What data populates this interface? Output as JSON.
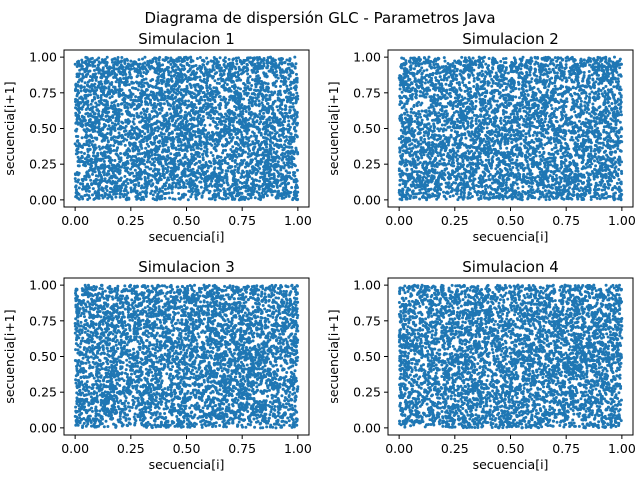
{
  "figure": {
    "suptitle": "Diagrama de dispersión GLC - Parametros Java",
    "background": "#ffffff"
  },
  "chart_data": [
    {
      "type": "scatter",
      "title": "Simulacion 1",
      "xlabel": "secuencia[i]",
      "ylabel": "secuencia[i+1]",
      "xlim": [
        -0.05,
        1.05
      ],
      "ylim": [
        -0.05,
        1.05
      ],
      "xticks": [
        "0.00",
        "0.25",
        "0.50",
        "0.75",
        "1.00"
      ],
      "yticks": [
        "0.00",
        "0.25",
        "0.50",
        "0.75",
        "1.00"
      ],
      "grid": false,
      "color": "#1f77b4",
      "points": {
        "distribution": "uniform",
        "x_range": [
          0,
          1
        ],
        "y_range": [
          0,
          1
        ],
        "approx_count": 5000,
        "seed": 11
      }
    },
    {
      "type": "scatter",
      "title": "Simulacion 2",
      "xlabel": "secuencia[i]",
      "ylabel": "secuencia[i+1]",
      "xlim": [
        -0.05,
        1.05
      ],
      "ylim": [
        -0.05,
        1.05
      ],
      "xticks": [
        "0.00",
        "0.25",
        "0.50",
        "0.75",
        "1.00"
      ],
      "yticks": [
        "0.00",
        "0.25",
        "0.50",
        "0.75",
        "1.00"
      ],
      "grid": false,
      "color": "#1f77b4",
      "points": {
        "distribution": "uniform",
        "x_range": [
          0,
          1
        ],
        "y_range": [
          0,
          1
        ],
        "approx_count": 5000,
        "seed": 23
      }
    },
    {
      "type": "scatter",
      "title": "Simulacion 3",
      "xlabel": "secuencia[i]",
      "ylabel": "secuencia[i+1]",
      "xlim": [
        -0.05,
        1.05
      ],
      "ylim": [
        -0.05,
        1.05
      ],
      "xticks": [
        "0.00",
        "0.25",
        "0.50",
        "0.75",
        "1.00"
      ],
      "yticks": [
        "0.00",
        "0.25",
        "0.50",
        "0.75",
        "1.00"
      ],
      "grid": false,
      "color": "#1f77b4",
      "points": {
        "distribution": "uniform",
        "x_range": [
          0,
          1
        ],
        "y_range": [
          0,
          1
        ],
        "approx_count": 5000,
        "seed": 37
      }
    },
    {
      "type": "scatter",
      "title": "Simulacion 4",
      "xlabel": "secuencia[i]",
      "ylabel": "secuencia[i+1]",
      "xlim": [
        -0.05,
        1.05
      ],
      "ylim": [
        -0.05,
        1.05
      ],
      "xticks": [
        "0.00",
        "0.25",
        "0.50",
        "0.75",
        "1.00"
      ],
      "yticks": [
        "0.00",
        "0.25",
        "0.50",
        "0.75",
        "1.00"
      ],
      "grid": false,
      "color": "#1f77b4",
      "points": {
        "distribution": "uniform",
        "x_range": [
          0,
          1
        ],
        "y_range": [
          0,
          1
        ],
        "approx_count": 5000,
        "seed": 53
      }
    }
  ]
}
